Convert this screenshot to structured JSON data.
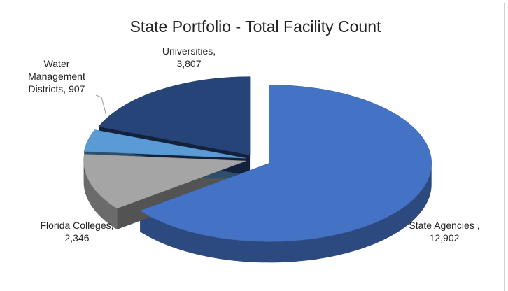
{
  "chart_data": {
    "type": "pie",
    "title": "State Portfolio - Total Facility Count",
    "categories": [
      "State Agencies ,",
      "Florida Colleges,",
      "Water Management Districts,",
      "Universities,"
    ],
    "values": [
      12902,
      2346,
      907,
      3807
    ],
    "value_labels": [
      "12,902",
      "2,346",
      "907",
      "3,807"
    ],
    "colors": [
      "#4472c4",
      "#a5a5a5",
      "#5b9bd5",
      "#264478"
    ]
  }
}
